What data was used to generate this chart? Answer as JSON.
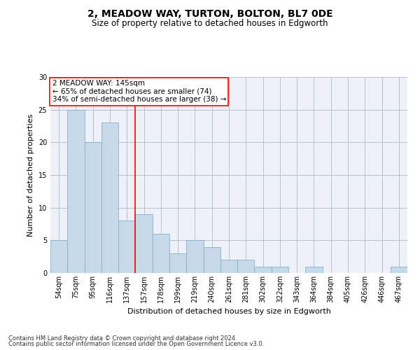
{
  "title": "2, MEADOW WAY, TURTON, BOLTON, BL7 0DE",
  "subtitle": "Size of property relative to detached houses in Edgworth",
  "xlabel": "Distribution of detached houses by size in Edgworth",
  "ylabel": "Number of detached properties",
  "footer_line1": "Contains HM Land Registry data © Crown copyright and database right 2024.",
  "footer_line2": "Contains public sector information licensed under the Open Government Licence v3.0.",
  "categories": [
    "54sqm",
    "75sqm",
    "95sqm",
    "116sqm",
    "137sqm",
    "157sqm",
    "178sqm",
    "199sqm",
    "219sqm",
    "240sqm",
    "261sqm",
    "281sqm",
    "302sqm",
    "322sqm",
    "343sqm",
    "364sqm",
    "384sqm",
    "405sqm",
    "426sqm",
    "446sqm",
    "467sqm"
  ],
  "values": [
    5,
    25,
    20,
    23,
    8,
    9,
    6,
    3,
    5,
    4,
    2,
    2,
    1,
    1,
    0,
    1,
    0,
    0,
    0,
    0,
    1
  ],
  "bar_color": "#c5d9e8",
  "bar_edge_color": "#7aa8c8",
  "grid_color": "#b0b8c8",
  "background_color": "#eef2f8",
  "annotation_text_line1": "2 MEADOW WAY: 145sqm",
  "annotation_text_line2": "← 65% of detached houses are smaller (74)",
  "annotation_text_line3": "34% of semi-detached houses are larger (38) →",
  "vline_bin_index": 4,
  "ylim": [
    0,
    30
  ],
  "yticks": [
    0,
    5,
    10,
    15,
    20,
    25,
    30
  ],
  "title_fontsize": 10,
  "subtitle_fontsize": 8.5,
  "ylabel_fontsize": 8,
  "xlabel_fontsize": 8,
  "tick_fontsize": 7,
  "annotation_fontsize": 7.5,
  "footer_fontsize": 6
}
